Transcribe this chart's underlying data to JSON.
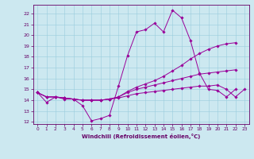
{
  "xlabel": "Windchill (Refroidissement éolien,°C)",
  "background_color": "#cce8f0",
  "grid_color": "#99ccdd",
  "line_color": "#990099",
  "xlim": [
    -0.5,
    23.5
  ],
  "ylim": [
    11.8,
    22.8
  ],
  "yticks": [
    12,
    13,
    14,
    15,
    16,
    17,
    18,
    19,
    20,
    21,
    22
  ],
  "xticks": [
    0,
    1,
    2,
    3,
    4,
    5,
    6,
    7,
    8,
    9,
    10,
    11,
    12,
    13,
    14,
    15,
    16,
    17,
    18,
    19,
    20,
    21,
    22,
    23
  ],
  "series": [
    {
      "x": [
        0,
        1,
        2,
        3,
        4,
        5,
        6,
        7,
        8,
        9,
        10,
        11,
        12,
        13,
        14,
        15,
        16,
        17,
        18,
        19,
        20,
        21,
        22
      ],
      "y": [
        14.7,
        13.8,
        14.3,
        14.1,
        14.1,
        13.5,
        12.1,
        12.3,
        12.6,
        15.3,
        18.1,
        20.3,
        20.5,
        21.1,
        20.3,
        22.3,
        21.6,
        19.5,
        16.5,
        15.0,
        14.9,
        14.3,
        15.0
      ]
    },
    {
      "x": [
        0,
        1,
        2,
        3,
        4,
        5,
        6,
        7,
        8,
        9,
        10,
        11,
        12,
        13,
        14,
        15,
        16,
        17,
        18,
        19,
        20,
        21,
        22
      ],
      "y": [
        14.7,
        14.3,
        14.3,
        14.2,
        14.1,
        14.0,
        14.0,
        14.0,
        14.1,
        14.3,
        14.8,
        15.2,
        15.5,
        15.8,
        16.2,
        16.7,
        17.2,
        17.8,
        18.3,
        18.7,
        19.0,
        19.2,
        19.3
      ]
    },
    {
      "x": [
        0,
        1,
        2,
        3,
        4,
        5,
        6,
        7,
        8,
        9,
        10,
        11,
        12,
        13,
        14,
        15,
        16,
        17,
        18,
        19,
        20,
        21,
        22
      ],
      "y": [
        14.7,
        14.3,
        14.3,
        14.2,
        14.1,
        14.0,
        14.0,
        14.0,
        14.1,
        14.3,
        14.7,
        15.0,
        15.2,
        15.4,
        15.6,
        15.8,
        16.0,
        16.2,
        16.4,
        16.5,
        16.6,
        16.7,
        16.8
      ]
    },
    {
      "x": [
        0,
        1,
        2,
        3,
        4,
        5,
        6,
        7,
        8,
        9,
        10,
        11,
        12,
        13,
        14,
        15,
        16,
        17,
        18,
        19,
        20,
        21,
        22,
        23
      ],
      "y": [
        14.7,
        14.3,
        14.3,
        14.2,
        14.1,
        14.0,
        14.0,
        14.0,
        14.1,
        14.2,
        14.4,
        14.6,
        14.7,
        14.8,
        14.9,
        15.0,
        15.1,
        15.2,
        15.3,
        15.3,
        15.4,
        15.0,
        14.3,
        15.0
      ]
    }
  ]
}
